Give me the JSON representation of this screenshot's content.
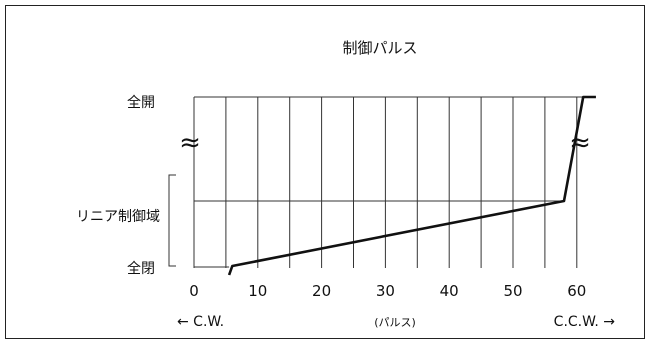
{
  "chart_data": {
    "type": "line",
    "title": "制御パルス",
    "xlabel": "(パルス)",
    "x_direction_left": "← C.W.",
    "x_direction_right": "C.C.W. →",
    "x_ticks": [
      0,
      10,
      20,
      30,
      40,
      50,
      60
    ],
    "xlim": [
      0,
      63
    ],
    "grid": true,
    "y_labels": {
      "open": "全開",
      "linear": "リニア制御域",
      "closed": "全閉"
    },
    "axis_break_symbol": "≈",
    "series": [
      {
        "points": [
          {
            "x": 5.5,
            "y": "全閉"
          },
          {
            "x": 6,
            "y": "全閉+"
          },
          {
            "x": 58,
            "y": "リニア上限"
          },
          {
            "x": 61,
            "y": "全開"
          },
          {
            "x": 63,
            "y": "全開"
          }
        ]
      }
    ]
  }
}
